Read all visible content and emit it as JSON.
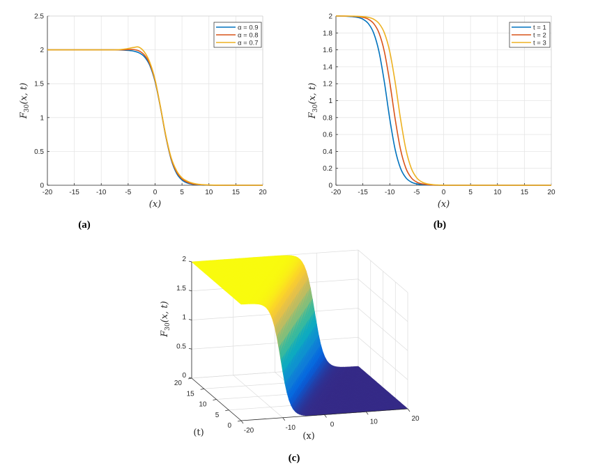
{
  "chart_data": [
    {
      "type": "line",
      "caption": "(a)",
      "xlabel": "(x)",
      "ylabel": "F_30(x,t)",
      "ylabel_main": "F",
      "ylabel_sub": "30",
      "ylabel_args": "(x, t)",
      "xlim": [
        -20,
        20
      ],
      "ylim": [
        0,
        2.5
      ],
      "xticks": [
        "-20",
        "-15",
        "-10",
        "-5",
        "0",
        "5",
        "10",
        "15",
        "20"
      ],
      "yticks": [
        "0",
        "0.5",
        "1",
        "1.5",
        "2",
        "2.5"
      ],
      "grid": true,
      "legend_position": "top-right",
      "x": [
        -20,
        -19,
        -18,
        -17,
        -16,
        -15,
        -14,
        -13,
        -12,
        -11,
        -10,
        -9,
        -8,
        -7,
        -6,
        -5,
        -4,
        -3,
        -2,
        -1,
        0,
        1,
        2,
        3,
        4,
        5,
        6,
        7,
        8,
        9,
        10,
        11,
        12,
        13,
        14,
        15,
        16,
        17,
        18,
        19,
        20
      ],
      "series": [
        {
          "name": "α = 0.9",
          "color": "#0072BD",
          "values": [
            2,
            2,
            2,
            2,
            2,
            2,
            2,
            2,
            2,
            2,
            2,
            2,
            2,
            1.999,
            1.997,
            1.992,
            1.982,
            1.957,
            1.9,
            1.774,
            1.53,
            1.149,
            0.718,
            0.377,
            0.176,
            0.077,
            0.033,
            0.014,
            0.006,
            0.002,
            0.001,
            0,
            0,
            0,
            0,
            0,
            0,
            0,
            0,
            0,
            0
          ]
        },
        {
          "name": "α = 0.8",
          "color": "#D95319",
          "values": [
            2,
            2,
            2,
            2,
            2,
            2,
            2,
            2,
            2,
            2,
            2,
            2,
            2,
            2,
            2,
            2.003,
            2.005,
            1.985,
            1.925,
            1.795,
            1.545,
            1.155,
            0.725,
            0.39,
            0.195,
            0.095,
            0.045,
            0.02,
            0.01,
            0.005,
            0.002,
            0.001,
            0,
            0,
            0,
            0,
            0,
            0,
            0,
            0,
            0
          ]
        },
        {
          "name": "α = 0.7",
          "color": "#EDB120",
          "values": [
            2,
            2,
            2,
            2,
            2,
            2,
            2,
            2,
            2,
            2,
            2,
            2,
            2,
            2.002,
            2.008,
            2.02,
            2.035,
            2.04,
            1.97,
            1.82,
            1.56,
            1.16,
            0.735,
            0.405,
            0.215,
            0.11,
            0.06,
            0.03,
            0.015,
            0.008,
            0.004,
            0.002,
            0.001,
            0,
            0,
            0,
            0,
            0,
            0,
            0,
            0
          ]
        }
      ]
    },
    {
      "type": "line",
      "caption": "(b)",
      "xlabel": "(x)",
      "ylabel": "F_30(x,t)",
      "ylabel_main": "F",
      "ylabel_sub": "30",
      "ylabel_args": "(x, t)",
      "xlim": [
        -20,
        20
      ],
      "ylim": [
        0,
        2
      ],
      "xticks": [
        "-20",
        "-15",
        "-10",
        "-5",
        "0",
        "5",
        "10",
        "15",
        "20"
      ],
      "yticks": [
        "0",
        "0.2",
        "0.4",
        "0.6",
        "0.8",
        "1",
        "1.2",
        "1.4",
        "1.6",
        "1.8",
        "2"
      ],
      "grid": true,
      "legend_position": "top-right",
      "x": [
        -20,
        -19,
        -18,
        -17,
        -16,
        -15,
        -14,
        -13,
        -12,
        -11,
        -10,
        -9,
        -8,
        -7,
        -6,
        -5,
        -4,
        -3,
        -2,
        -1,
        0,
        1,
        2,
        3,
        4,
        5,
        6,
        7,
        8,
        9,
        10,
        11,
        12,
        13,
        14,
        15,
        16,
        17,
        18,
        19,
        20
      ],
      "series": [
        {
          "name": "t = 1",
          "color": "#0072BD",
          "values": [
            2,
            1.999,
            1.997,
            1.993,
            1.984,
            1.963,
            1.912,
            1.8,
            1.578,
            1.217,
            0.783,
            0.422,
            0.2,
            0.088,
            0.037,
            0.016,
            0.007,
            0.003,
            0.001,
            0,
            0,
            0,
            0,
            0,
            0,
            0,
            0,
            0,
            0,
            0,
            0,
            0,
            0,
            0,
            0,
            0,
            0,
            0,
            0,
            0,
            0
          ]
        },
        {
          "name": "t = 2",
          "color": "#D95319",
          "values": [
            2,
            2,
            1.999,
            1.997,
            1.993,
            1.984,
            1.963,
            1.912,
            1.8,
            1.578,
            1.217,
            0.783,
            0.422,
            0.2,
            0.088,
            0.037,
            0.016,
            0.007,
            0.003,
            0.001,
            0,
            0,
            0,
            0,
            0,
            0,
            0,
            0,
            0,
            0,
            0,
            0,
            0,
            0,
            0,
            0,
            0,
            0,
            0,
            0,
            0
          ]
        },
        {
          "name": "t = 3",
          "color": "#EDB120",
          "values": [
            2,
            2,
            2,
            1.999,
            1.997,
            1.993,
            1.984,
            1.963,
            1.912,
            1.8,
            1.578,
            1.217,
            0.783,
            0.422,
            0.2,
            0.088,
            0.037,
            0.016,
            0.007,
            0.003,
            0.001,
            0,
            0,
            0,
            0,
            0,
            0,
            0,
            0,
            0,
            0,
            0,
            0,
            0,
            0,
            0,
            0,
            0,
            0,
            0,
            0
          ]
        }
      ]
    },
    {
      "type": "surface",
      "caption": "(c)",
      "xlabel": "(x)",
      "tlabel": "(t)",
      "zlabel": "F_30(x,t)",
      "zlabel_main": "F",
      "zlabel_sub": "30",
      "zlabel_args": "(x, t)",
      "xlim": [
        -20,
        20
      ],
      "tlim": [
        0,
        20
      ],
      "zlim": [
        0,
        2
      ],
      "xticks": [
        "-20",
        "-10",
        "0",
        "10",
        "20"
      ],
      "tticks": [
        "0",
        "5",
        "10",
        "15",
        "20"
      ],
      "zticks": [
        "0",
        "0.5",
        "1",
        "1.5",
        "2"
      ],
      "colormap": "parula",
      "colormap_stops": [
        "#352a87",
        "#0363e1",
        "#1485d4",
        "#06a7c6",
        "#38b99e",
        "#92bf73",
        "#d9ba56",
        "#fcce2e",
        "#f9fb0e"
      ],
      "grid": true
    }
  ]
}
